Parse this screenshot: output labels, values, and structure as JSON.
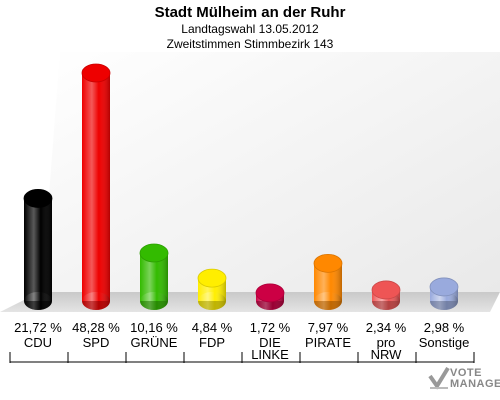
{
  "header": {
    "title": "Stadt Mülheim an der Ruhr",
    "line1": "Landtagswahl 13.05.2012",
    "line2": "Zweitstimmen Stimmbezirk 143"
  },
  "chart_data": {
    "type": "bar",
    "title": "Stadt Mülheim an der Ruhr",
    "subtitle": "Landtagswahl 13.05.2012 — Zweitstimmen Stimmbezirk 143",
    "xlabel": "",
    "ylabel": "",
    "ylim": [
      0,
      50
    ],
    "grid": false,
    "legend": "none",
    "categories": [
      "CDU",
      "SPD",
      "GRÜNE",
      "FDP",
      "DIE LINKE",
      "PIRATE",
      "pro NRW",
      "Sonstige"
    ],
    "category_lines": [
      [
        "CDU"
      ],
      [
        "SPD"
      ],
      [
        "GRÜNE"
      ],
      [
        "FDP"
      ],
      [
        "DIE",
        "LINKE"
      ],
      [
        "PIRATE"
      ],
      [
        "pro",
        "NRW"
      ],
      [
        "Sonstige"
      ]
    ],
    "values": [
      21.72,
      48.28,
      10.16,
      4.84,
      1.72,
      7.97,
      2.34,
      2.98
    ],
    "value_labels": [
      "21,72 %",
      "48,28 %",
      "10,16 %",
      "4,84 %",
      "1,72 %",
      "7,97 %",
      "2,34 %",
      "2,98 %"
    ],
    "colors": [
      "#000000",
      "#ee0000",
      "#33bb00",
      "#ffee00",
      "#cc0044",
      "#ff8800",
      "#ee5555",
      "#99aadd"
    ]
  },
  "logo": {
    "text_line1": "VOTE",
    "text_line2": "MANAGER"
  }
}
